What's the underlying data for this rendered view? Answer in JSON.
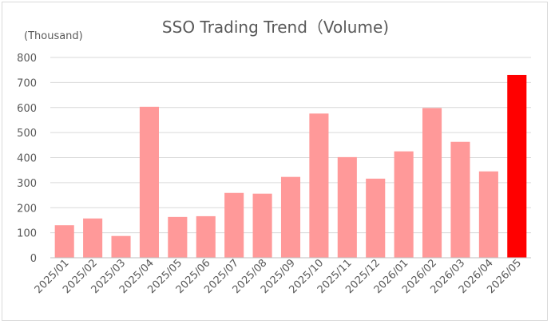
{
  "chart_data": {
    "type": "bar",
    "title": "SSO Trading Trend（Volume)",
    "unit_label": "(Thousand)",
    "xlabel": "",
    "ylabel": "",
    "ylim": [
      0,
      800
    ],
    "yticks": [
      0,
      100,
      200,
      300,
      400,
      500,
      600,
      700,
      800
    ],
    "grid": true,
    "legend": "none",
    "categories": [
      "2025/01",
      "2025/02",
      "2025/03",
      "2025/04",
      "2025/05",
      "2025/06",
      "2025/07",
      "2025/08",
      "2025/09",
      "2025/10",
      "2025/11",
      "2025/12",
      "2026/01",
      "2026/02",
      "2026/03",
      "2026/04",
      "2026/05"
    ],
    "values": [
      130,
      157,
      87,
      603,
      163,
      166,
      259,
      256,
      323,
      576,
      402,
      316,
      425,
      598,
      463,
      345,
      730
    ],
    "colors": {
      "bar": "#ff9999",
      "highlight": "#ff0000",
      "grid": "#d9d9d9",
      "axis": "#bfbfbf"
    },
    "highlight_index": 16
  }
}
